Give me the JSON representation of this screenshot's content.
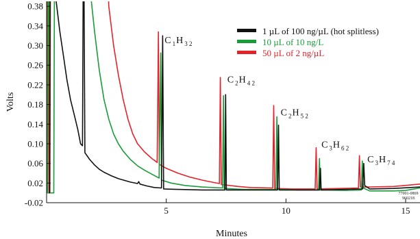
{
  "chart_data": {
    "type": "line",
    "title": "",
    "xlabel": "Minutes",
    "ylabel": "Volts",
    "xlim": [
      0.0,
      15.6
    ],
    "ylim": [
      -0.02,
      0.39
    ],
    "x_ticks": [
      5,
      10,
      15
    ],
    "x_tick_labels": [
      "5",
      "10",
      "15"
    ],
    "y_ticks": [
      -0.02,
      0.02,
      0.06,
      0.1,
      0.14,
      0.18,
      0.22,
      0.26,
      0.3,
      0.34,
      0.38
    ],
    "y_tick_labels": [
      "-0.02",
      "0.02",
      "0.06",
      "0.10",
      "0.14",
      "0.18",
      "0.22",
      "0.26",
      "0.30",
      "0.34",
      "0.38"
    ],
    "grid": false,
    "legend_position": "top-right",
    "series": [
      {
        "name": "1 µL of 100 ng/µL (hot splitless)",
        "color": "#111111",
        "points": [
          [
            0.08,
            0.0
          ],
          [
            0.12,
            0.0
          ],
          [
            0.15,
            0.45
          ],
          [
            0.35,
            0.45
          ],
          [
            0.4,
            0.39
          ],
          [
            0.55,
            0.33
          ],
          [
            0.7,
            0.28
          ],
          [
            0.85,
            0.23
          ],
          [
            1.0,
            0.19
          ],
          [
            1.15,
            0.16
          ],
          [
            1.3,
            0.13
          ],
          [
            1.42,
            0.1
          ],
          [
            1.5,
            0.096
          ],
          [
            1.53,
            0.45
          ],
          [
            1.56,
            0.45
          ],
          [
            1.6,
            0.082
          ],
          [
            1.8,
            0.068
          ],
          [
            2.0,
            0.057
          ],
          [
            2.2,
            0.048
          ],
          [
            2.4,
            0.042
          ],
          [
            2.7,
            0.035
          ],
          [
            3.0,
            0.029
          ],
          [
            3.5,
            0.022
          ],
          [
            3.8,
            0.019
          ],
          [
            3.85,
            0.023
          ],
          [
            3.9,
            0.018
          ],
          [
            4.2,
            0.014
          ],
          [
            4.5,
            0.011
          ],
          [
            4.8,
            0.01
          ],
          [
            4.85,
            0.32
          ],
          [
            4.89,
            0.008
          ],
          [
            5.5,
            0.007
          ],
          [
            6.5,
            0.006
          ],
          [
            7.45,
            0.006
          ],
          [
            7.48,
            0.2
          ],
          [
            7.51,
            0.006
          ],
          [
            8.5,
            0.006
          ],
          [
            9.65,
            0.006
          ],
          [
            9.69,
            0.138
          ],
          [
            9.72,
            0.006
          ],
          [
            10.5,
            0.006
          ],
          [
            11.4,
            0.006
          ],
          [
            11.44,
            0.05
          ],
          [
            11.47,
            0.006
          ],
          [
            12.5,
            0.007
          ],
          [
            13.2,
            0.008
          ],
          [
            13.25,
            0.06
          ],
          [
            13.29,
            0.015
          ],
          [
            13.5,
            0.008
          ],
          [
            14.5,
            0.009
          ],
          [
            15.6,
            0.012
          ]
        ]
      },
      {
        "name": "10 µL of 10 ng/L",
        "color": "#1a9b3a",
        "points": [
          [
            0.0,
            0.0
          ],
          [
            0.04,
            0.0
          ],
          [
            0.06,
            0.45
          ],
          [
            0.1,
            0.45
          ],
          [
            0.13,
            0.0
          ],
          [
            0.3,
            0.0
          ],
          [
            0.33,
            0.45
          ],
          [
            1.8,
            0.45
          ],
          [
            1.85,
            0.4
          ],
          [
            2.0,
            0.33
          ],
          [
            2.2,
            0.25
          ],
          [
            2.4,
            0.19
          ],
          [
            2.6,
            0.15
          ],
          [
            2.8,
            0.12
          ],
          [
            3.0,
            0.1
          ],
          [
            3.2,
            0.085
          ],
          [
            3.5,
            0.068
          ],
          [
            3.8,
            0.055
          ],
          [
            4.1,
            0.046
          ],
          [
            4.4,
            0.038
          ],
          [
            4.7,
            0.03
          ],
          [
            4.77,
            0.285
          ],
          [
            4.8,
            0.026
          ],
          [
            5.2,
            0.02
          ],
          [
            5.8,
            0.015
          ],
          [
            6.5,
            0.012
          ],
          [
            7.35,
            0.01
          ],
          [
            7.39,
            0.198
          ],
          [
            7.42,
            0.009
          ],
          [
            8.2,
            0.007
          ],
          [
            9.58,
            0.007
          ],
          [
            9.62,
            0.155
          ],
          [
            9.65,
            0.007
          ],
          [
            10.5,
            0.006
          ],
          [
            11.36,
            0.006
          ],
          [
            11.4,
            0.07
          ],
          [
            11.43,
            0.006
          ],
          [
            12.5,
            0.005
          ],
          [
            13.15,
            0.006
          ],
          [
            13.19,
            0.065
          ],
          [
            13.23,
            0.01
          ],
          [
            13.5,
            0.004
          ],
          [
            14.5,
            0.004
          ],
          [
            15.0,
            0.005
          ],
          [
            15.6,
            0.01
          ]
        ]
      },
      {
        "name": "50 µL of 2 ng/µL",
        "color": "#e3232b",
        "points": [
          [
            0.0,
            0.0
          ],
          [
            0.02,
            0.0
          ],
          [
            0.04,
            0.45
          ],
          [
            0.08,
            0.45
          ],
          [
            0.1,
            0.0
          ],
          [
            0.14,
            0.0
          ],
          [
            0.16,
            0.45
          ],
          [
            2.55,
            0.45
          ],
          [
            2.6,
            0.38
          ],
          [
            2.8,
            0.3
          ],
          [
            3.0,
            0.24
          ],
          [
            3.2,
            0.19
          ],
          [
            3.4,
            0.15
          ],
          [
            3.6,
            0.12
          ],
          [
            3.8,
            0.1
          ],
          [
            4.1,
            0.083
          ],
          [
            4.4,
            0.07
          ],
          [
            4.62,
            0.062
          ],
          [
            4.67,
            0.328
          ],
          [
            4.71,
            0.058
          ],
          [
            5.0,
            0.05
          ],
          [
            5.5,
            0.04
          ],
          [
            6.0,
            0.032
          ],
          [
            6.5,
            0.026
          ],
          [
            7.0,
            0.021
          ],
          [
            7.22,
            0.019
          ],
          [
            7.26,
            0.235
          ],
          [
            7.3,
            0.017
          ],
          [
            8.0,
            0.013
          ],
          [
            8.5,
            0.011
          ],
          [
            9.45,
            0.01
          ],
          [
            9.49,
            0.178
          ],
          [
            9.53,
            0.009
          ],
          [
            10.2,
            0.008
          ],
          [
            11.22,
            0.008
          ],
          [
            11.26,
            0.092
          ],
          [
            11.3,
            0.008
          ],
          [
            12.3,
            0.009
          ],
          [
            13.03,
            0.01
          ],
          [
            13.07,
            0.076
          ],
          [
            13.11,
            0.012
          ],
          [
            13.5,
            0.012
          ],
          [
            14.5,
            0.013
          ],
          [
            15.6,
            0.018
          ]
        ]
      }
    ],
    "annotations": [
      {
        "main1": "C",
        "sub1": "1",
        "main2": "H",
        "sub2": "3 2",
        "x": 4.93,
        "y": 0.305
      },
      {
        "main1": "C",
        "sub1": "2",
        "main2": "H",
        "sub2": "4 2",
        "x": 7.55,
        "y": 0.225
      },
      {
        "main1": "C",
        "sub1": "2",
        "main2": "H",
        "sub2": "5 2",
        "x": 9.78,
        "y": 0.158
      },
      {
        "main1": "C",
        "sub1": "3",
        "main2": "H",
        "sub2": "6 2",
        "x": 11.48,
        "y": 0.092
      },
      {
        "main1": "C",
        "sub1": "3",
        "main2": "H",
        "sub2": "7 4",
        "x": 13.4,
        "y": 0.062
      }
    ],
    "footnote": [
      "77001-0869",
      "960218"
    ]
  }
}
